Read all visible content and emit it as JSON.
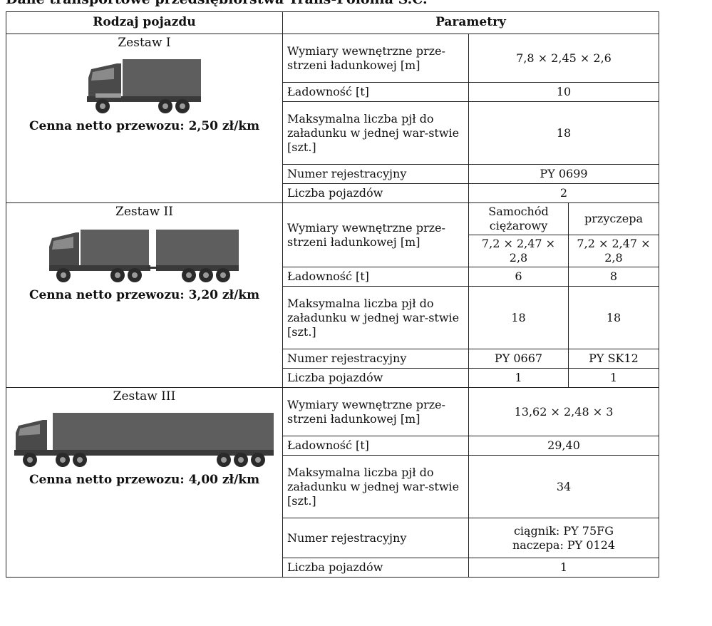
{
  "title": "Dane transportowe przedsiębiorstwa Trans-Polonia S.C.",
  "headers": {
    "vehicle": "Rodzaj pojazdu",
    "params": "Parametry"
  },
  "sets": [
    {
      "name": "Zestaw I",
      "price": "Cenna netto przewozu: 2,50 zł/km",
      "icon": "box-truck-icon",
      "rows": [
        {
          "label": "Wymiary wewnętrzne prze-strzeni ładunkowej [m]",
          "value": "7,8 × 2,45 × 2,6"
        },
        {
          "label": "Ładowność [t]",
          "value": "10"
        },
        {
          "label": "Maksymalna liczba pjł do załadunku w jednej war-stwie [szt.]",
          "value": "18"
        },
        {
          "label": "Numer rejestracyjny",
          "value": "PY 0699"
        },
        {
          "label": "Liczba pojazdów",
          "value": "2"
        }
      ]
    },
    {
      "name": "Zestaw II",
      "price": "Cenna netto przewozu: 3,20 zł/km",
      "icon": "truck-with-trailer-icon",
      "subheaders": [
        "Samochód ciężarowy",
        "przyczepa"
      ],
      "rows": [
        {
          "label": "Wymiary wewnętrzne prze-strzeni ładunkowej [m]",
          "values": [
            "7,2 × 2,47 × 2,8",
            "7,2 × 2,47 × 2,8"
          ]
        },
        {
          "label": "Ładowność [t]",
          "values": [
            "6",
            "8"
          ]
        },
        {
          "label": "Maksymalna liczba pjł do załadunku w jednej war-stwie [szt.]",
          "values": [
            "18",
            "18"
          ]
        },
        {
          "label": "Numer rejestracyjny",
          "values": [
            "PY 0667",
            "PY SK12"
          ]
        },
        {
          "label": "Liczba pojazdów",
          "values": [
            "1",
            "1"
          ]
        }
      ]
    },
    {
      "name": "Zestaw III",
      "price": "Cenna netto przewozu: 4,00 zł/km",
      "icon": "tractor-semitrailer-icon",
      "rows": [
        {
          "label": "Wymiary wewnętrzne prze-strzeni ładunkowej [m]",
          "value": "13,62 × 2,48 × 3"
        },
        {
          "label": "Ładowność [t]",
          "value": "29,40"
        },
        {
          "label": "Maksymalna liczba pjł do załadunku w jednej war-stwie [szt.]",
          "value": "34"
        },
        {
          "label": "Numer rejestracyjny",
          "value_lines": [
            "ciągnik: PY 75FG",
            "naczepa: PY 0124"
          ]
        },
        {
          "label": "Liczba pojazdów",
          "value": "1"
        }
      ]
    }
  ],
  "colors": {
    "truck_body": "#5e5e5e",
    "cab": "#4a4a4a",
    "grid": "#222222"
  }
}
